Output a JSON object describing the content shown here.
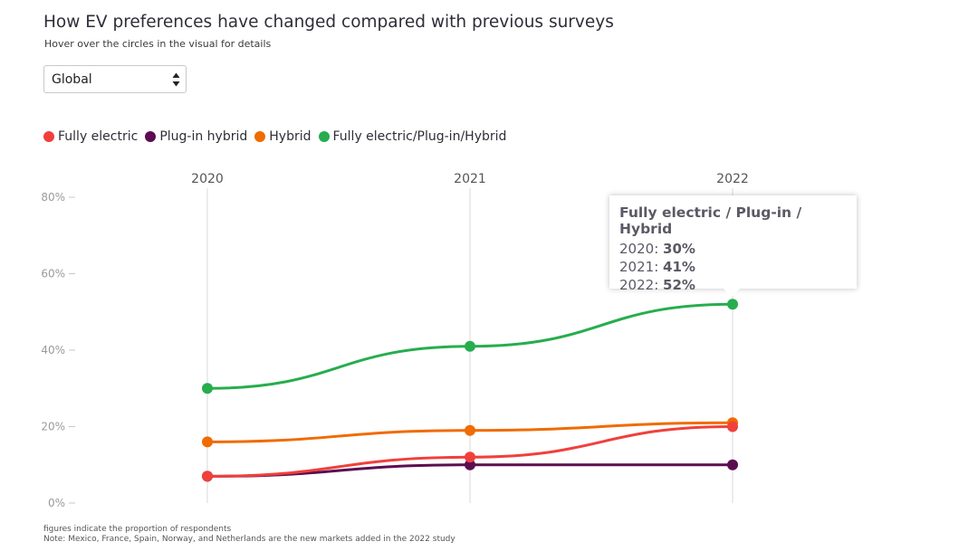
{
  "header": {
    "title": "How EV preferences have changed compared with previous surveys",
    "subtitle": "Hover over the circles in the visual for details"
  },
  "region_select": {
    "value": "Global"
  },
  "legend": [
    {
      "label": "Fully electric",
      "color": "#f0403c"
    },
    {
      "label": "Plug-in hybrid",
      "color": "#5c0d4f"
    },
    {
      "label": "Hybrid",
      "color": "#f06b00"
    },
    {
      "label": "Fully electric/Plug-in/Hybrid",
      "color": "#27ad4e"
    }
  ],
  "tooltip": {
    "title": "Fully electric / Plug-in / Hybrid",
    "rows": [
      {
        "year": "2020",
        "sep": ": ",
        "value": "30%"
      },
      {
        "year": "2021",
        "sep": ": ",
        "value": "41%"
      },
      {
        "year": "2022",
        "sep": ": ",
        "value": "52%"
      }
    ]
  },
  "footnotes": [
    "figures indicate the proportion of respondents",
    "Note: Mexico, France, Spain, Norway, and Netherlands are the new markets added in the 2022 study"
  ],
  "chart_data": {
    "type": "line",
    "x": [
      "2020",
      "2021",
      "2022"
    ],
    "ylim": [
      0,
      80
    ],
    "yticks": [
      0,
      20,
      40,
      60,
      80
    ],
    "ytick_labels": [
      "0%",
      "20%",
      "40%",
      "60%",
      "80%"
    ],
    "grid": "vertical",
    "legend_position": "top-left",
    "series": [
      {
        "name": "Fully electric/Plug-in/Hybrid",
        "color": "#27ad4e",
        "values": [
          30,
          41,
          52
        ]
      },
      {
        "name": "Hybrid",
        "color": "#f06b00",
        "values": [
          16,
          19,
          21
        ]
      },
      {
        "name": "Plug-in hybrid",
        "color": "#5c0d4f",
        "values": [
          7,
          10,
          10
        ]
      },
      {
        "name": "Fully electric",
        "color": "#f0403c",
        "values": [
          7,
          12,
          20
        ]
      }
    ]
  }
}
